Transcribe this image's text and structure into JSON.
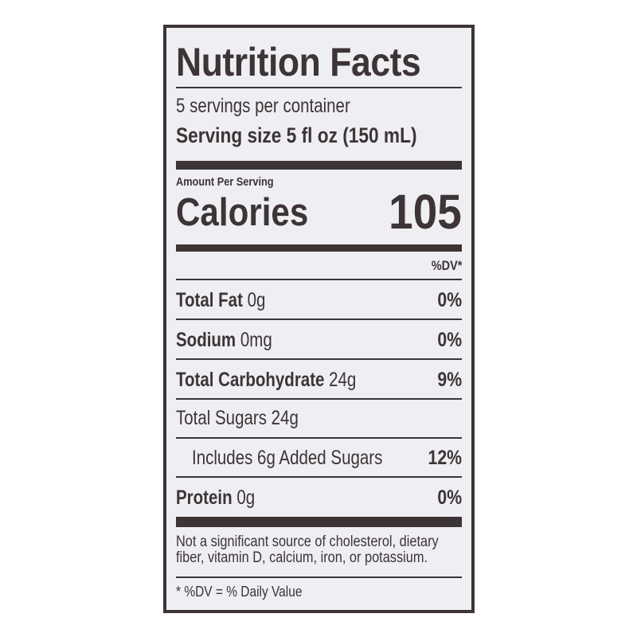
{
  "title": "Nutrition Facts",
  "servings_per_container": "5 servings per container",
  "serving_size": "Serving size 5 fl oz (150 mL)",
  "amount_per_serving": "Amount Per Serving",
  "calories_label": "Calories",
  "calories_value": "105",
  "dv_header": "%DV*",
  "nutrients": [
    {
      "name": "Total Fat",
      "amount": "0g",
      "dv": "0%"
    },
    {
      "name": "Sodium",
      "amount": "0mg",
      "dv": "0%"
    },
    {
      "name": "Total Carbohydrate",
      "amount": "24g",
      "dv": "9%"
    },
    {
      "name": "Total Sugars 24g",
      "amount": "",
      "dv": ""
    },
    {
      "name": "Includes 6g Added Sugars",
      "amount": "",
      "dv": "12%"
    },
    {
      "name": "Protein",
      "amount": "0g",
      "dv": "0%"
    }
  ],
  "footnote": [
    "Not a significant source of cholesterol, dietary",
    "fiber, vitamin D, calcium, iron, or potassium."
  ],
  "dv_note": "* %DV = % Daily Value",
  "colors": {
    "ink": "#3d3436",
    "panel": "#eeeef3"
  }
}
